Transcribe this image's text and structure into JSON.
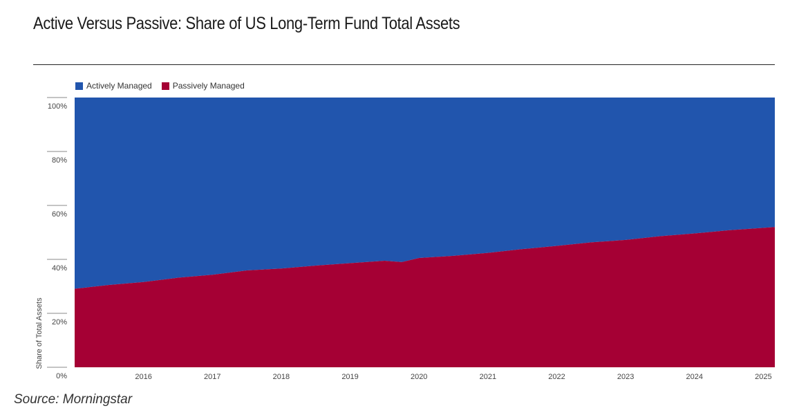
{
  "title": "Active Versus Passive: Share of US Long-Term Fund Total Assets",
  "source": "Source: Morningstar",
  "chart_data": {
    "type": "area",
    "stacked": true,
    "ylabel": "Share of Total Assets",
    "xlabel": "",
    "ylim": [
      0,
      100
    ],
    "yticks": [
      "0%",
      "20%",
      "40%",
      "60%",
      "80%",
      "100%"
    ],
    "xticks": [
      "2016",
      "2017",
      "2018",
      "2019",
      "2020",
      "2021",
      "2022",
      "2023",
      "2024",
      "2025"
    ],
    "xrange": [
      "2015-07",
      "2025-09"
    ],
    "legend_position": "top-left",
    "x": [
      "2015-07",
      "2016-01",
      "2016-07",
      "2017-01",
      "2017-07",
      "2018-01",
      "2018-07",
      "2019-01",
      "2019-07",
      "2020-01",
      "2020-04",
      "2020-07",
      "2021-01",
      "2021-07",
      "2022-01",
      "2022-07",
      "2023-01",
      "2023-07",
      "2024-01",
      "2024-07",
      "2025-01",
      "2025-09"
    ],
    "series": [
      {
        "name": "Passively Managed",
        "color": "#a50034",
        "values": [
          29.1,
          30.5,
          31.6,
          33.2,
          34.3,
          35.9,
          36.6,
          37.7,
          38.6,
          39.5,
          39.0,
          40.5,
          41.3,
          42.4,
          43.8,
          45.0,
          46.3,
          47.2,
          48.6,
          49.6,
          50.8,
          52.0
        ]
      },
      {
        "name": "Actively Managed",
        "color": "#2155ad",
        "values": [
          70.9,
          69.5,
          68.4,
          66.8,
          65.7,
          64.1,
          63.4,
          62.3,
          61.4,
          60.5,
          61.0,
          59.5,
          58.7,
          57.6,
          56.2,
          55.0,
          53.7,
          52.8,
          51.4,
          50.4,
          49.2,
          48.0
        ]
      }
    ]
  }
}
